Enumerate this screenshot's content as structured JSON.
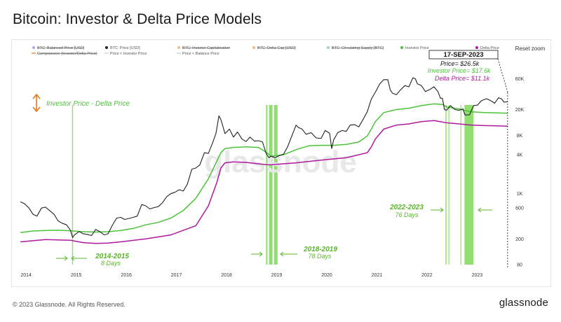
{
  "header": {
    "title": "Bitcoin: Investor & Delta Price Models"
  },
  "toolbar": {
    "reset_zoom": "Reset zoom"
  },
  "footer": {
    "copyright": "© 2023 Glassnode. All Rights Reserved.",
    "brand": "glassnode"
  },
  "watermark": "glassnode",
  "legend": {
    "row1": [
      {
        "label": "BTC: Balanced Price [USD]",
        "color": "#3d5bd9",
        "disabled": true
      },
      {
        "label": "BTC: Price [USD]",
        "color": "#222222",
        "disabled": false
      },
      {
        "label": "BTC: Investor Capitalisation",
        "color": "#e07b1b",
        "disabled": true
      },
      {
        "label": "BTC: Delta Cap [USD]",
        "color": "#e07b1b",
        "disabled": true
      },
      {
        "label": "BTC: Circulating Supply [BTC]",
        "color": "#3cb371",
        "disabled": true
      },
      {
        "label": "Investor Price",
        "color": "#4cc23a",
        "disabled": false
      },
      {
        "label": "Delta Price",
        "color": "#b0189f",
        "disabled": false
      }
    ],
    "row2": [
      {
        "label": "Compression (Investor/Delta Price)",
        "color": "#e07b1b",
        "disabled": true
      },
      {
        "label": "Price < Investor Price",
        "color": "#cccccc",
        "disabled": false
      },
      {
        "label": "Price < Balance Price",
        "color": "#cccccc",
        "disabled": false
      }
    ]
  },
  "annotations": {
    "spread_label": "Investor Price - Delta Price",
    "date_label": "17-SEP-2023",
    "price_label": "Price= $26.5k",
    "investor_label": "Investor Price= $17.6k",
    "delta_label": "Delta Price= $11.1k",
    "period_2014_title": "2014-2015",
    "period_2014_days": "8 Days",
    "period_2018_title": "2018-2019",
    "period_2018_days": "78 Days",
    "period_2022_title": "2022-2023",
    "period_2022_days": "76 Days"
  },
  "colors": {
    "price": "#222222",
    "investor": "#4cc23a",
    "delta": "#b0189f",
    "band": "#7ed957",
    "accent_orange": "#e07b1b"
  },
  "chart_data": {
    "type": "line",
    "title": "Bitcoin: Investor & Delta Price Models",
    "y_scale": "log",
    "ylim": [
      80,
      100000
    ],
    "y_ticks": [
      "60K",
      "20K",
      "8K",
      "4K",
      "1K",
      "600",
      "200",
      "80"
    ],
    "y_tick_values": [
      60000,
      20000,
      8000,
      4000,
      1000,
      600,
      200,
      80
    ],
    "x_ticks": [
      "2014",
      "2015",
      "2016",
      "2017",
      "2018",
      "2019",
      "2020",
      "2021",
      "2022",
      "2023"
    ],
    "x_tick_values": [
      2014,
      2015,
      2016,
      2017,
      2018,
      2019,
      2020,
      2021,
      2022,
      2023
    ],
    "xlim": [
      2013.9,
      2023.75
    ],
    "series": [
      {
        "name": "BTC: Price [USD]",
        "color": "#222222",
        "points": [
          [
            2014.0,
            750
          ],
          [
            2014.08,
            700
          ],
          [
            2014.17,
            600
          ],
          [
            2014.25,
            480
          ],
          [
            2014.33,
            450
          ],
          [
            2014.42,
            600
          ],
          [
            2014.5,
            620
          ],
          [
            2014.58,
            550
          ],
          [
            2014.67,
            480
          ],
          [
            2014.75,
            380
          ],
          [
            2014.83,
            350
          ],
          [
            2014.92,
            330
          ],
          [
            2015.0,
            270
          ],
          [
            2015.04,
            210
          ],
          [
            2015.08,
            230
          ],
          [
            2015.17,
            260
          ],
          [
            2015.25,
            240
          ],
          [
            2015.33,
            235
          ],
          [
            2015.42,
            225
          ],
          [
            2015.5,
            280
          ],
          [
            2015.58,
            260
          ],
          [
            2015.67,
            230
          ],
          [
            2015.75,
            240
          ],
          [
            2015.83,
            320
          ],
          [
            2015.92,
            420
          ],
          [
            2016.0,
            430
          ],
          [
            2016.08,
            400
          ],
          [
            2016.17,
            415
          ],
          [
            2016.25,
            430
          ],
          [
            2016.33,
            450
          ],
          [
            2016.42,
            680
          ],
          [
            2016.5,
            650
          ],
          [
            2016.58,
            580
          ],
          [
            2016.67,
            610
          ],
          [
            2016.75,
            630
          ],
          [
            2016.83,
            720
          ],
          [
            2016.92,
            900
          ],
          [
            2017.0,
            1000
          ],
          [
            2017.08,
            1050
          ],
          [
            2017.17,
            1150
          ],
          [
            2017.25,
            1100
          ],
          [
            2017.33,
            1400
          ],
          [
            2017.42,
            2400
          ],
          [
            2017.5,
            2500
          ],
          [
            2017.58,
            2800
          ],
          [
            2017.67,
            4300
          ],
          [
            2017.75,
            4200
          ],
          [
            2017.83,
            6000
          ],
          [
            2017.9,
            8500
          ],
          [
            2017.96,
            16000
          ],
          [
            2018.0,
            14000
          ],
          [
            2018.04,
            11000
          ],
          [
            2018.08,
            8500
          ],
          [
            2018.17,
            10000
          ],
          [
            2018.25,
            7500
          ],
          [
            2018.33,
            9000
          ],
          [
            2018.42,
            7000
          ],
          [
            2018.5,
            6400
          ],
          [
            2018.58,
            7500
          ],
          [
            2018.67,
            6500
          ],
          [
            2018.75,
            6600
          ],
          [
            2018.83,
            6300
          ],
          [
            2018.9,
            4200
          ],
          [
            2018.96,
            3600
          ],
          [
            2019.0,
            3800
          ],
          [
            2019.08,
            3600
          ],
          [
            2019.17,
            3900
          ],
          [
            2019.25,
            4100
          ],
          [
            2019.33,
            5300
          ],
          [
            2019.42,
            8000
          ],
          [
            2019.5,
            11500
          ],
          [
            2019.55,
            10500
          ],
          [
            2019.62,
            10000
          ],
          [
            2019.7,
            8300
          ],
          [
            2019.8,
            8800
          ],
          [
            2019.9,
            7300
          ],
          [
            2019.96,
            7200
          ],
          [
            2020.0,
            7200
          ],
          [
            2020.08,
            9500
          ],
          [
            2020.17,
            8600
          ],
          [
            2020.21,
            5000
          ],
          [
            2020.25,
            6800
          ],
          [
            2020.33,
            8800
          ],
          [
            2020.42,
            9500
          ],
          [
            2020.5,
            9200
          ],
          [
            2020.58,
            11500
          ],
          [
            2020.67,
            11700
          ],
          [
            2020.75,
            10800
          ],
          [
            2020.83,
            13800
          ],
          [
            2020.92,
            18500
          ],
          [
            2021.0,
            29000
          ],
          [
            2021.08,
            37000
          ],
          [
            2021.17,
            50000
          ],
          [
            2021.25,
            58000
          ],
          [
            2021.33,
            58000
          ],
          [
            2021.38,
            40000
          ],
          [
            2021.42,
            36000
          ],
          [
            2021.5,
            34000
          ],
          [
            2021.58,
            40000
          ],
          [
            2021.67,
            47000
          ],
          [
            2021.75,
            45000
          ],
          [
            2021.83,
            62000
          ],
          [
            2021.88,
            60000
          ],
          [
            2021.92,
            50000
          ],
          [
            2022.0,
            47000
          ],
          [
            2022.08,
            38000
          ],
          [
            2022.17,
            41000
          ],
          [
            2022.25,
            45000
          ],
          [
            2022.33,
            38000
          ],
          [
            2022.38,
            30000
          ],
          [
            2022.42,
            30000
          ],
          [
            2022.46,
            20000
          ],
          [
            2022.5,
            19500
          ],
          [
            2022.58,
            23000
          ],
          [
            2022.67,
            20000
          ],
          [
            2022.75,
            19500
          ],
          [
            2022.83,
            20500
          ],
          [
            2022.87,
            16500
          ],
          [
            2022.96,
            16600
          ],
          [
            2023.04,
            23000
          ],
          [
            2023.12,
            23500
          ],
          [
            2023.2,
            27500
          ],
          [
            2023.3,
            29500
          ],
          [
            2023.4,
            27000
          ],
          [
            2023.46,
            25000
          ],
          [
            2023.54,
            30500
          ],
          [
            2023.6,
            29200
          ],
          [
            2023.65,
            26000
          ],
          [
            2023.72,
            26500
          ]
        ]
      },
      {
        "name": "Investor Price",
        "color": "#4cc23a",
        "points": [
          [
            2014.0,
            250
          ],
          [
            2014.25,
            265
          ],
          [
            2014.5,
            270
          ],
          [
            2014.75,
            272
          ],
          [
            2015.0,
            266
          ],
          [
            2015.25,
            258
          ],
          [
            2015.5,
            255
          ],
          [
            2015.75,
            258
          ],
          [
            2016.0,
            270
          ],
          [
            2016.25,
            290
          ],
          [
            2016.5,
            330
          ],
          [
            2016.75,
            360
          ],
          [
            2017.0,
            420
          ],
          [
            2017.25,
            550
          ],
          [
            2017.5,
            850
          ],
          [
            2017.75,
            1700
          ],
          [
            2017.92,
            3200
          ],
          [
            2018.0,
            4300
          ],
          [
            2018.08,
            5000
          ],
          [
            2018.25,
            5200
          ],
          [
            2018.5,
            5300
          ],
          [
            2018.75,
            5200
          ],
          [
            2018.92,
            4300
          ],
          [
            2019.0,
            3800
          ],
          [
            2019.25,
            4000
          ],
          [
            2019.5,
            4800
          ],
          [
            2019.75,
            5500
          ],
          [
            2020.0,
            5600
          ],
          [
            2020.25,
            5600
          ],
          [
            2020.5,
            5800
          ],
          [
            2020.75,
            6300
          ],
          [
            2020.92,
            7800
          ],
          [
            2021.0,
            10000
          ],
          [
            2021.08,
            13000
          ],
          [
            2021.25,
            18000
          ],
          [
            2021.5,
            20000
          ],
          [
            2021.75,
            21000
          ],
          [
            2022.0,
            23000
          ],
          [
            2022.25,
            24500
          ],
          [
            2022.42,
            24000
          ],
          [
            2022.5,
            22000
          ],
          [
            2022.75,
            20500
          ],
          [
            2022.92,
            19000
          ],
          [
            2023.0,
            18500
          ],
          [
            2023.25,
            18000
          ],
          [
            2023.5,
            17800
          ],
          [
            2023.72,
            17600
          ]
        ]
      },
      {
        "name": "Delta Price",
        "color": "#b0189f",
        "points": [
          [
            2014.0,
            180
          ],
          [
            2014.5,
            195
          ],
          [
            2015.0,
            190
          ],
          [
            2015.25,
            175
          ],
          [
            2015.5,
            170
          ],
          [
            2015.75,
            172
          ],
          [
            2016.0,
            180
          ],
          [
            2016.5,
            200
          ],
          [
            2017.0,
            230
          ],
          [
            2017.5,
            320
          ],
          [
            2017.75,
            650
          ],
          [
            2017.92,
            1500
          ],
          [
            2018.0,
            2500
          ],
          [
            2018.08,
            3000
          ],
          [
            2018.25,
            3100
          ],
          [
            2018.5,
            3050
          ],
          [
            2018.75,
            2900
          ],
          [
            2018.92,
            2800
          ],
          [
            2019.0,
            2800
          ],
          [
            2019.5,
            3000
          ],
          [
            2020.0,
            3300
          ],
          [
            2020.5,
            3600
          ],
          [
            2020.92,
            4300
          ],
          [
            2021.0,
            5300
          ],
          [
            2021.08,
            7000
          ],
          [
            2021.25,
            10000
          ],
          [
            2021.5,
            11500
          ],
          [
            2021.75,
            12000
          ],
          [
            2022.0,
            13000
          ],
          [
            2022.25,
            13500
          ],
          [
            2022.5,
            12500
          ],
          [
            2022.75,
            12000
          ],
          [
            2023.0,
            11500
          ],
          [
            2023.25,
            11300
          ],
          [
            2023.5,
            11200
          ],
          [
            2023.72,
            11100
          ]
        ]
      }
    ],
    "highlight_bands": [
      {
        "label": "2014-2015",
        "start": 2015.03,
        "end": 2015.05
      },
      {
        "label": "2018-2019",
        "start": 2018.9,
        "end": 2018.93
      },
      {
        "label": "2018-2019",
        "start": 2018.96,
        "end": 2019.03
      },
      {
        "label": "2018-2019",
        "start": 2019.06,
        "end": 2019.13
      },
      {
        "label": "2022-2023",
        "start": 2022.48,
        "end": 2022.5
      },
      {
        "label": "2022-2023",
        "start": 2022.54,
        "end": 2022.55
      },
      {
        "label": "2022-2023",
        "start": 2022.78,
        "end": 2022.79
      },
      {
        "label": "2022-2023",
        "start": 2022.86,
        "end": 2023.04
      }
    ],
    "marker_date": 2023.72,
    "grid": false,
    "legend_position": "top"
  }
}
